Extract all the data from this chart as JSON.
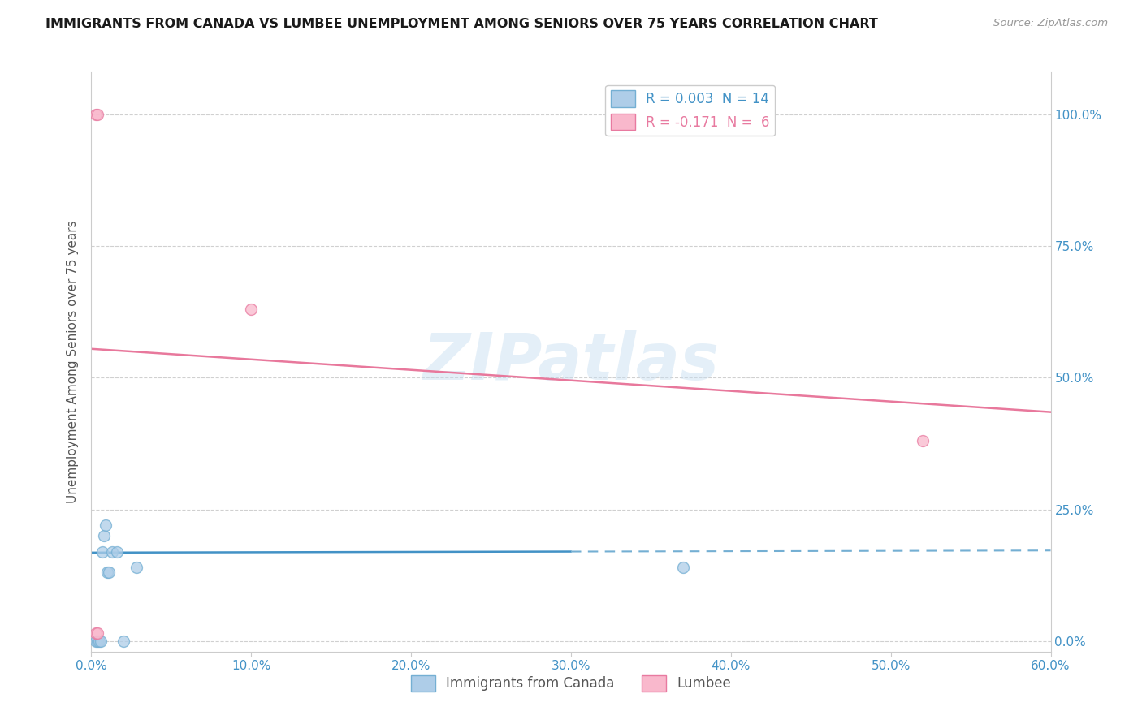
{
  "title": "IMMIGRANTS FROM CANADA VS LUMBEE UNEMPLOYMENT AMONG SENIORS OVER 75 YEARS CORRELATION CHART",
  "source": "Source: ZipAtlas.com",
  "xlim": [
    0.0,
    0.6
  ],
  "ylim": [
    -0.02,
    1.08
  ],
  "watermark": "ZIPatlas",
  "blue_scatter": {
    "x": [
      0.003,
      0.004,
      0.005,
      0.006,
      0.007,
      0.008,
      0.009,
      0.01,
      0.011,
      0.013,
      0.016,
      0.02,
      0.028,
      0.37
    ],
    "y": [
      0.0,
      0.0,
      0.0,
      0.0,
      0.17,
      0.2,
      0.22,
      0.13,
      0.13,
      0.17,
      0.17,
      0.0,
      0.14,
      0.14
    ],
    "color": "#aecde8",
    "edgecolor": "#74afd3",
    "size": 100,
    "alpha": 0.75
  },
  "pink_scatter": {
    "x": [
      0.003,
      0.004,
      0.1,
      0.52,
      0.003,
      0.004
    ],
    "y": [
      1.0,
      1.0,
      0.63,
      0.38,
      0.015,
      0.015
    ],
    "color": "#f9b8cc",
    "edgecolor": "#e87aa0",
    "size": 100,
    "alpha": 0.75
  },
  "blue_line": {
    "x": [
      0.0,
      0.6
    ],
    "y": [
      0.168,
      0.172
    ],
    "color": "#4292c6",
    "linewidth": 1.8,
    "linestyle": "solid"
  },
  "blue_dashed": {
    "x": [
      0.3,
      0.6
    ],
    "y": [
      0.168,
      0.172
    ],
    "color": "#74afd3",
    "linewidth": 1.5,
    "linestyle": "dashed"
  },
  "pink_line": {
    "x": [
      0.0,
      0.6
    ],
    "y": [
      0.555,
      0.435
    ],
    "color": "#e8789c",
    "linewidth": 1.8,
    "linestyle": "solid"
  },
  "grid_color": "#d0d0d0",
  "bg_color": "#ffffff",
  "title_color": "#1a1a1a",
  "axis_label_color": "#4292c6",
  "watermark_color": "#c5ddf0",
  "watermark_alpha": 0.45,
  "ylabel": "Unemployment Among Seniors over 75 years",
  "ytick_vals": [
    0.0,
    0.25,
    0.5,
    0.75,
    1.0
  ],
  "ytick_labels": [
    "0.0%",
    "25.0%",
    "50.0%",
    "75.0%",
    "100.0%"
  ],
  "xtick_vals": [
    0.0,
    0.1,
    0.2,
    0.3,
    0.4,
    0.5,
    0.6
  ],
  "xtick_labels": [
    "0.0%",
    "10.0%",
    "20.0%",
    "30.0%",
    "40.0%",
    "50.0%",
    "60.0%"
  ]
}
